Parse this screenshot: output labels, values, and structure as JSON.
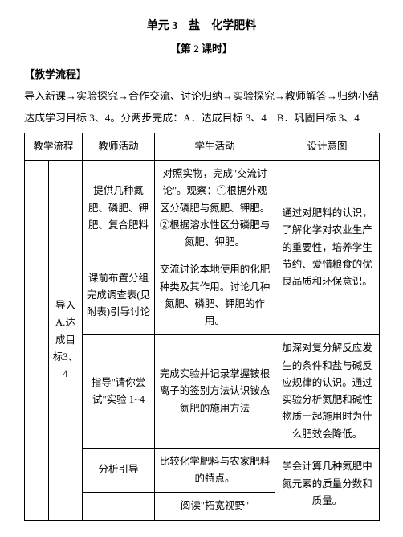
{
  "header": {
    "title": "单元 3　盐　化学肥料",
    "subtitle": "【第 2 课时】"
  },
  "section": {
    "label": "【教学流程】",
    "flow1": "导入新课→实验探究→合作交流、讨论归纳→实验探究→教师解答→归纳小结",
    "flow2": "达成学习目标 3、4。分两步完成：A．达成目标 3、4　B．巩固目标 3、4"
  },
  "table": {
    "headers": {
      "col12": "教学流程",
      "col3": "教师活动",
      "col4": "学生活动",
      "col5": "设计意图"
    },
    "rowgroup_left": "导入A.达成目标3、4",
    "rows": [
      {
        "teacher": "提供几种氮肥、磷肥、钾肥、复合肥料",
        "student": "对照实物，完成\"交流讨论\"。观察：①根据外观区分磷肥与氮肥、钾肥。②根据溶水性区分磷肥与氮肥、钾肥。",
        "intent": ""
      },
      {
        "teacher": "课前布置分组完成调查表(见附表)引导讨论",
        "student": "交流讨论本地使用的化肥种类及其作用。讨论几种氮肥、磷肥、钾肥的作用。",
        "intent": "通过对肥料的认识，了解化学对农业生产的重要性，培养学生节约、爱惜粮食的优良品质和环保意识。"
      },
      {
        "teacher": "指导\"请你尝试\"实验 1~4",
        "student": "完成实验并记录掌握铵根离子的签别方法认识铵态氮肥的施用方法",
        "intent": "加深对复分解反应发生的条件和盐与碱反应规律的认识。通过实验分析氮肥和碱性物质一起施用时为什么肥效会降低。"
      },
      {
        "teacher": "分析引导",
        "student": "比较化学肥料与农家肥料的特点。",
        "intent": "学会计算几种氮肥中氮元素的质量分数和质量。"
      },
      {
        "teacher": "",
        "student": "阅读\"拓宽视野\"",
        "intent": ""
      }
    ]
  }
}
